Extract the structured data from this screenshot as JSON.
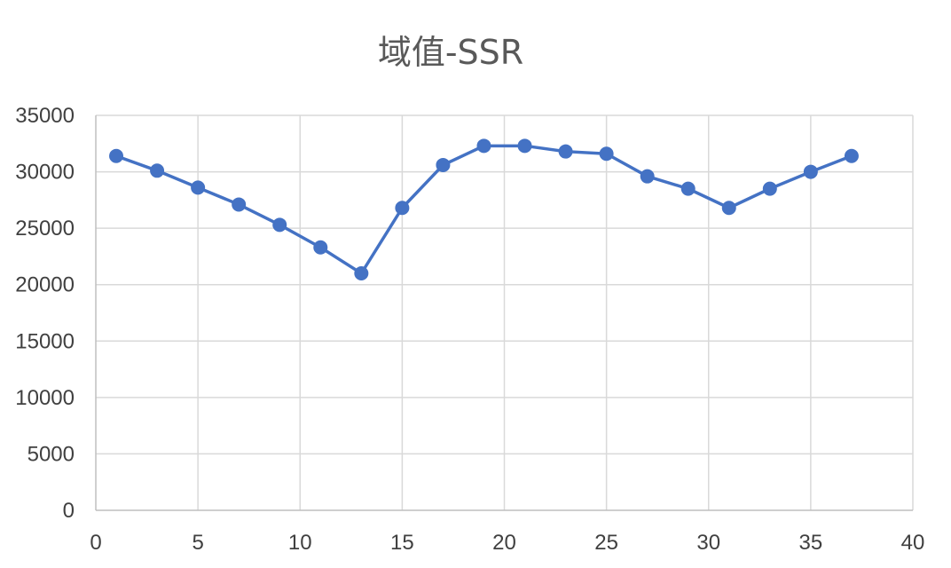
{
  "chart_data": {
    "type": "line",
    "title": "域值-SSR",
    "xlabel": "",
    "ylabel": "",
    "xlim": [
      0,
      40
    ],
    "ylim": [
      0,
      35000
    ],
    "x_ticks": [
      "0",
      "5",
      "10",
      "15",
      "20",
      "25",
      "30",
      "35",
      "40"
    ],
    "y_ticks": [
      "0",
      "5000",
      "10000",
      "15000",
      "20000",
      "25000",
      "30000",
      "35000"
    ],
    "grid": true,
    "legend": "none",
    "series": [
      {
        "color": "#4472c4",
        "marker": "circle",
        "x": [
          1,
          3,
          5,
          7,
          9,
          11,
          13,
          15,
          17,
          19,
          21,
          23,
          25,
          27,
          29,
          31,
          33,
          35,
          37
        ],
        "y": [
          31400,
          30100,
          28600,
          27100,
          25300,
          23300,
          21000,
          26800,
          30600,
          32300,
          32300,
          31800,
          31600,
          29600,
          28500,
          26800,
          28500,
          30000,
          31400
        ]
      }
    ]
  }
}
